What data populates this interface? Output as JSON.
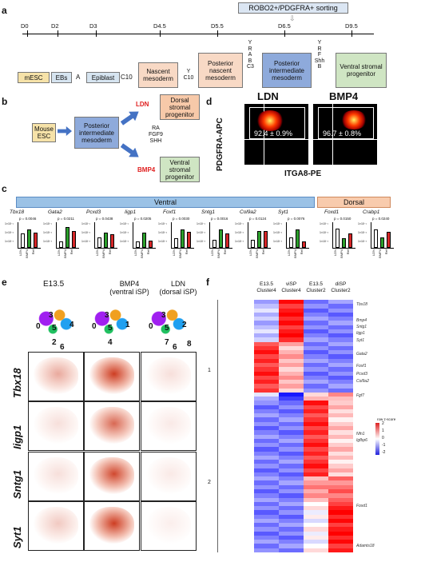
{
  "panels": {
    "a": "a",
    "b": "b",
    "c": "c",
    "d": "d",
    "e": "e",
    "f": "f"
  },
  "panel_a": {
    "sorting_label": "ROBO2+/PDGFRA+ sorting",
    "days": [
      "D0",
      "D2",
      "D3",
      "D4.5",
      "D5.5",
      "D6.5",
      "D9.5"
    ],
    "stages": [
      "mESC",
      "EBs",
      "Epiblast",
      "Nascent mesoderm",
      "Posterior nascent mesoderm",
      "Posterior intermediate mesoderm",
      "Ventral stromal progenitor"
    ],
    "treatments": [
      "A",
      "C10",
      "Y\nC10",
      "Y\nR\nA\nB\nC3",
      "Y\nR\nF\nShh\nB"
    ]
  },
  "panel_b": {
    "mouse": "Mouse ESC",
    "pim": "Posterior intermediate mesoderm",
    "ldn": "LDN",
    "bmp4": "BMP4",
    "factors": "RA\nFGF9\nSHH",
    "dorsal": "Dorsal stromal progenitor",
    "ventral": "Ventral stromal progenitor"
  },
  "panel_d": {
    "titles": [
      "LDN",
      "BMP4"
    ],
    "pcts": [
      "92.4 ± 0.9%",
      "96.7 ± 0.8%"
    ],
    "ylabel": "PDGFRA-APC",
    "xlabel": "ITGA8-PE"
  },
  "panel_c": {
    "ventral_label": "Ventral",
    "dorsal_label": "Dorsal",
    "ylabels": [
      "1×10⁻¹",
      "1×10⁻²",
      "1×10⁻³",
      "1×10⁻⁴",
      "1×10⁻⁵"
    ],
    "xcats": [
      "LDN",
      "BMP4",
      "Ref"
    ],
    "genes": [
      {
        "name": "Tbx18",
        "p": "p = 0.0046",
        "values": [
          0.55,
          0.72,
          0.6
        ]
      },
      {
        "name": "Gata2",
        "p": "p = 0.0211",
        "values": [
          0.25,
          0.82,
          0.66
        ]
      },
      {
        "name": "Pcxd3",
        "p": "p = 0.0438",
        "values": [
          0.42,
          0.6,
          0.52
        ]
      },
      {
        "name": "Iigp1",
        "p": "p = 0.0205",
        "values": [
          0.24,
          0.58,
          0.28
        ]
      },
      {
        "name": "Foxf1",
        "p": "p = 0.0030",
        "values": [
          0.38,
          0.72,
          0.62
        ]
      },
      {
        "name": "Sntg1",
        "p": "p = 0.0016",
        "values": [
          0.32,
          0.72,
          0.55
        ]
      },
      {
        "name": "Col9a2",
        "p": "p = 0.0124",
        "values": [
          0.3,
          0.66,
          0.66
        ]
      },
      {
        "name": "Syt1",
        "p": "p = 0.0076",
        "values": [
          0.42,
          0.72,
          0.24
        ]
      },
      {
        "name": "Foxd1",
        "p": "p = 0.0150",
        "values": [
          0.75,
          0.38,
          0.55
        ]
      },
      {
        "name": "Crabp1",
        "p": "p = 0.0240",
        "values": [
          0.72,
          0.42,
          0.62
        ]
      }
    ],
    "legend": [
      "LDN",
      "BMP4",
      "Ref"
    ]
  },
  "panel_e": {
    "cols": [
      "E13.5",
      "BMP4\n(ventral iSP)",
      "LDN\n(dorsal iSP)"
    ],
    "rows": [
      "Tbx18",
      "Iigp1",
      "Sntg1",
      "Syt1"
    ],
    "cluster_labels": [
      [
        "3",
        "0",
        "5",
        "4",
        "2",
        "6"
      ],
      [
        "3",
        "0",
        "5",
        "1",
        "4"
      ],
      [
        "3",
        "0",
        "5",
        "2",
        "7",
        "6",
        "8"
      ]
    ]
  },
  "panel_f": {
    "cols": [
      "E13.5\nCluster4",
      "viSP\nCluster4",
      "E13.5\nCluster2",
      "diSP\nCluster2"
    ],
    "genes": [
      "Tbx18",
      "Bmp4",
      "Sntg1",
      "Iigp1",
      "Syt1",
      "Gata2",
      "Foxf1",
      "Pcxd3",
      "Col9a2",
      "Fgf7",
      "Nfn1",
      "Igfbp6",
      "Foxd1",
      "Adamts18"
    ],
    "row_groups": [
      "1",
      "2"
    ],
    "scale": [
      "2",
      "1",
      "0",
      "-1",
      "-2"
    ],
    "scale_title": "row z-score"
  },
  "colors": {
    "ldn": "#ffffff",
    "bmp4": "#2ca02c",
    "ref": "#d62728",
    "box_mesc": "#f6e2a8",
    "box_ebs": "#d6e4f0",
    "box_nascent": "#f8d9c5",
    "box_pim": "#8eaadb",
    "box_vsp": "#cfe5c3",
    "box_dsp": "#f7c9a9",
    "ventral_band": "#9bc2e6",
    "dorsal_band": "#f8cbad"
  }
}
